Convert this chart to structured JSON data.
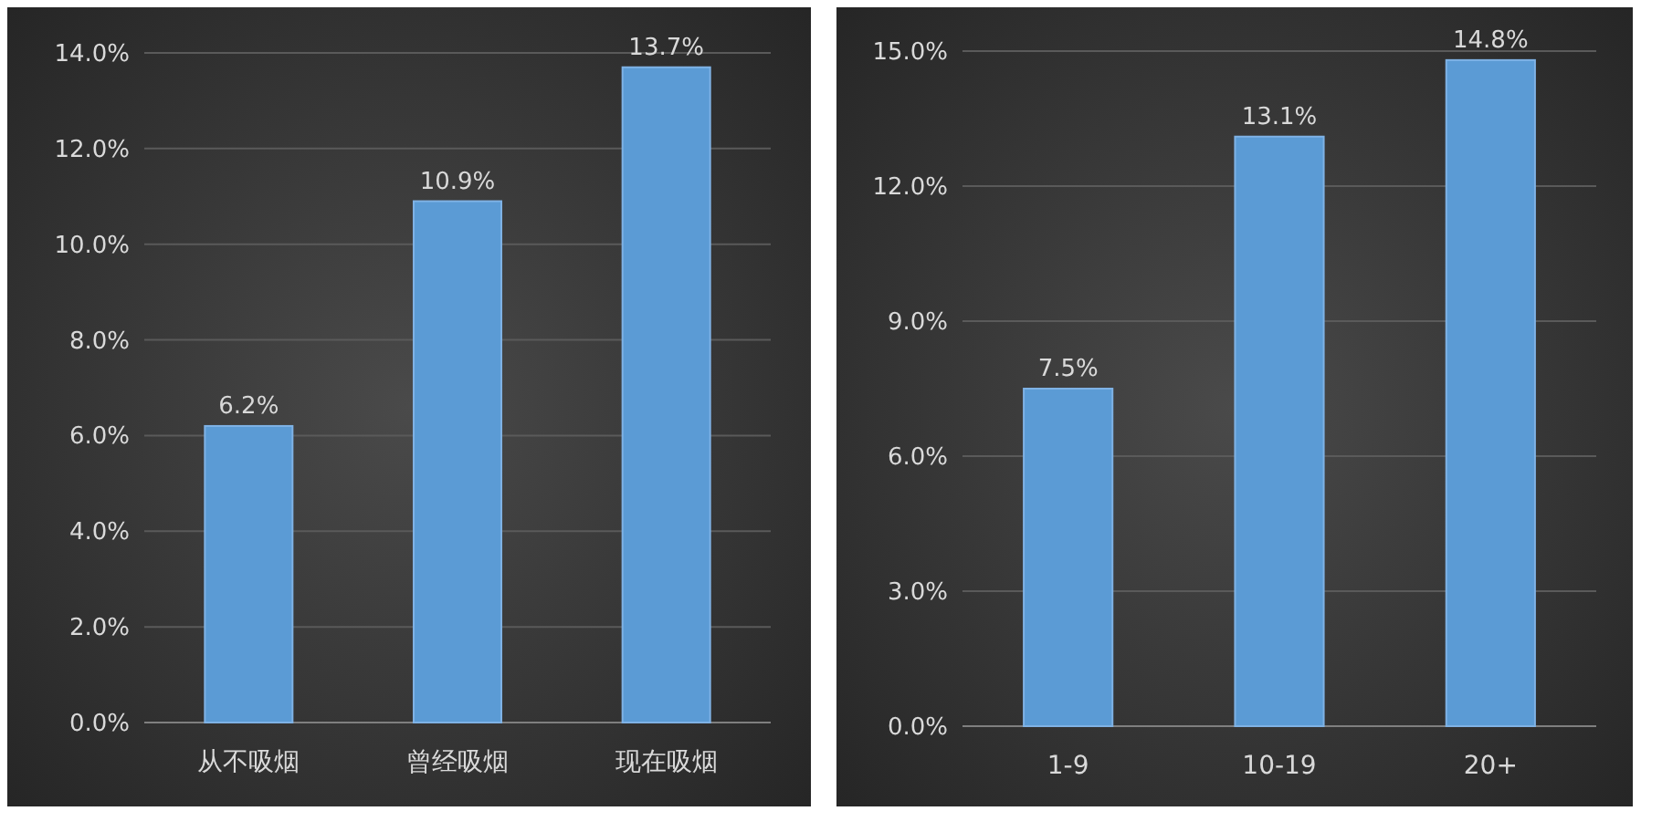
{
  "chart_data": [
    {
      "type": "bar",
      "categories": [
        "从不吸烟",
        "曾经吸烟",
        "现在吸烟"
      ],
      "values": [
        6.2,
        10.9,
        13.7
      ],
      "value_labels": [
        "6.2%",
        "10.9%",
        "13.7%"
      ],
      "color": "#5b9bd5",
      "ylim": [
        0,
        14
      ],
      "yticks": [
        {
          "value": 0,
          "label": "0.0%"
        },
        {
          "value": 2,
          "label": "2.0%"
        },
        {
          "value": 4,
          "label": "4.0%"
        },
        {
          "value": 6,
          "label": "6.0%"
        },
        {
          "value": 8,
          "label": "8.0%"
        },
        {
          "value": 10,
          "label": "10.0%"
        },
        {
          "value": 12,
          "label": "12.0%"
        },
        {
          "value": 14,
          "label": "14.0%"
        }
      ],
      "grid": "y"
    },
    {
      "type": "bar",
      "categories": [
        "1-9",
        "10-19",
        "20+"
      ],
      "values": [
        7.5,
        13.1,
        14.8
      ],
      "value_labels": [
        "7.5%",
        "13.1%",
        "14.8%"
      ],
      "color": "#5b9bd5",
      "ylim": [
        0,
        15
      ],
      "yticks": [
        {
          "value": 0,
          "label": "0.0%"
        },
        {
          "value": 3,
          "label": "3.0%"
        },
        {
          "value": 6,
          "label": "6.0%"
        },
        {
          "value": 9,
          "label": "9.0%"
        },
        {
          "value": 12,
          "label": "12.0%"
        },
        {
          "value": 15,
          "label": "15.0%"
        }
      ],
      "grid": "y"
    }
  ]
}
